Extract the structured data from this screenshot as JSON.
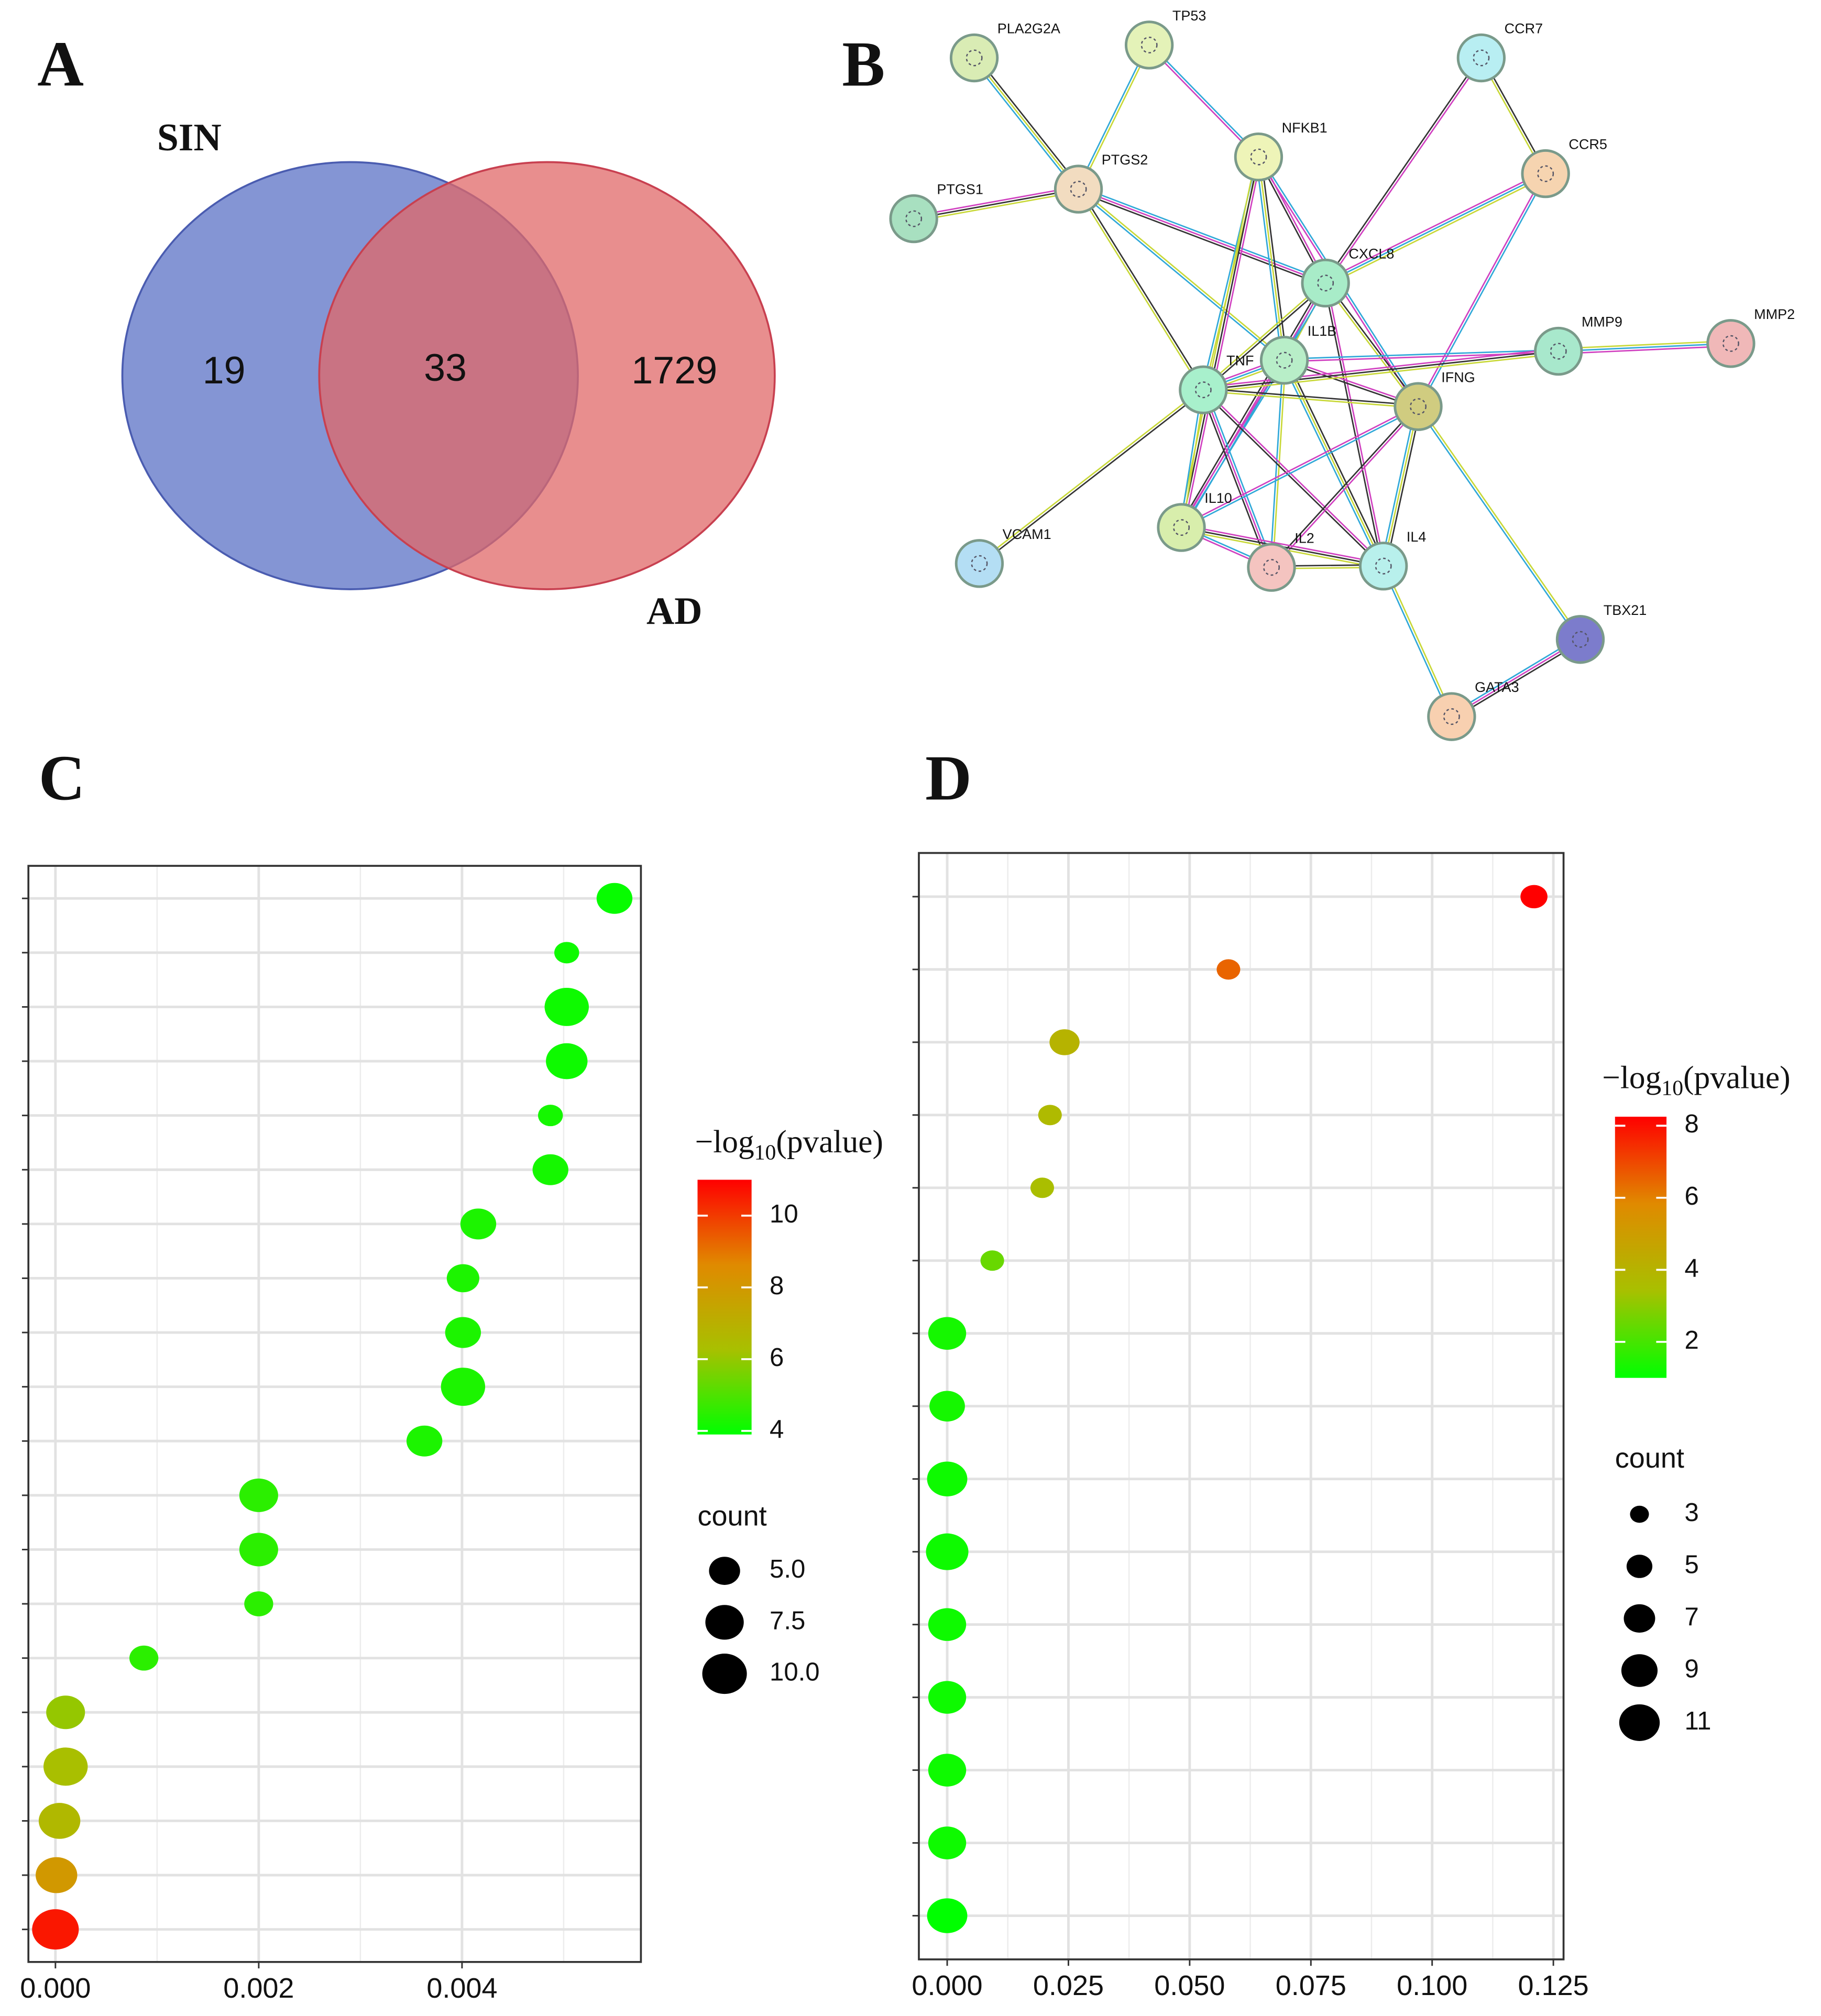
{
  "chart_data": [
    {
      "type": "venn",
      "panel": "A",
      "sets": [
        {
          "name": "SIN",
          "color": "#6f82cc"
        },
        {
          "name": "AD",
          "color": "#e06868"
        }
      ],
      "values": [
        19,
        33,
        1729
      ]
    },
    {
      "type": "network",
      "panel": "B",
      "nodes": [
        {
          "label": "PLA2G2A",
          "color": "#d9ecb4"
        },
        {
          "label": "TP53",
          "color": "#e4f2b8"
        },
        {
          "label": "CCR7",
          "color": "#b8eef2"
        },
        {
          "label": "NFKB1",
          "color": "#eef4b8"
        },
        {
          "label": "CCR5",
          "color": "#f6d4b0"
        },
        {
          "label": "PTGS2",
          "color": "#f2dcc0"
        },
        {
          "label": "PTGS1",
          "color": "#a8e0c0"
        },
        {
          "label": "CXCL8",
          "color": "#a8ecc8"
        },
        {
          "label": "MMP9",
          "color": "#a8e8cc"
        },
        {
          "label": "MMP2",
          "color": "#f0b8b8"
        },
        {
          "label": "IL1B",
          "color": "#b8eec8"
        },
        {
          "label": "TNF",
          "color": "#a8f0cc"
        },
        {
          "label": "IFNG",
          "color": "#d0cc80"
        },
        {
          "label": "IL10",
          "color": "#d8eeac"
        },
        {
          "label": "VCAM1",
          "color": "#b4def4"
        },
        {
          "label": "IL2",
          "color": "#f4c4c0"
        },
        {
          "label": "IL4",
          "color": "#b8f0ec"
        },
        {
          "label": "TBX21",
          "color": "#7c7ccc"
        },
        {
          "label": "GATA3",
          "color": "#f8d0b0"
        }
      ],
      "edges": [
        [
          0,
          5
        ],
        [
          1,
          5
        ],
        [
          1,
          3
        ],
        [
          6,
          5
        ],
        [
          5,
          11
        ],
        [
          5,
          10
        ],
        [
          5,
          7
        ],
        [
          2,
          7
        ],
        [
          2,
          4
        ],
        [
          4,
          7
        ],
        [
          4,
          12
        ],
        [
          3,
          7
        ],
        [
          3,
          10
        ],
        [
          3,
          11
        ],
        [
          3,
          12
        ],
        [
          3,
          13
        ],
        [
          7,
          11
        ],
        [
          7,
          10
        ],
        [
          7,
          13
        ],
        [
          7,
          16
        ],
        [
          7,
          12
        ],
        [
          10,
          11
        ],
        [
          10,
          8
        ],
        [
          10,
          12
        ],
        [
          10,
          16
        ],
        [
          10,
          15
        ],
        [
          10,
          13
        ],
        [
          11,
          8
        ],
        [
          11,
          12
        ],
        [
          11,
          13
        ],
        [
          11,
          15
        ],
        [
          11,
          16
        ],
        [
          11,
          14
        ],
        [
          8,
          9
        ],
        [
          12,
          13
        ],
        [
          12,
          15
        ],
        [
          12,
          16
        ],
        [
          12,
          17
        ],
        [
          13,
          15
        ],
        [
          13,
          16
        ],
        [
          15,
          16
        ],
        [
          16,
          18
        ],
        [
          18,
          17
        ]
      ]
    },
    {
      "type": "scatter",
      "panel": "C",
      "categories": [
        null,
        null,
        null,
        null,
        null,
        null,
        null,
        null,
        null,
        null,
        null,
        null,
        null,
        null,
        null,
        null,
        null,
        null,
        null,
        null
      ],
      "x": [
        0,
        1e-05,
        4e-05,
        0.0001,
        0.0001,
        0.00087,
        0.002,
        0.002,
        0.002,
        0.00363,
        0.00401,
        0.00401,
        0.00401,
        0.00416,
        0.00487,
        0.00487,
        0.00503,
        0.00503,
        0.00503,
        0.0055
      ],
      "sizes": [
        10,
        8,
        8,
        9,
        7,
        4,
        4,
        7,
        7,
        6,
        9,
        6,
        5,
        6,
        6,
        3,
        8,
        9,
        3,
        6
      ],
      "color_values": [
        10.6,
        8,
        6.6,
        6.3,
        6,
        4.5,
        4.5,
        4.5,
        4.5,
        4.3,
        4.3,
        4.3,
        4.3,
        4.3,
        4.2,
        4.2,
        4.1,
        4.1,
        4.1,
        4
      ],
      "xlim": [
        -0.000266,
        0.00576
      ],
      "xticks": [
        {
          "value": 0,
          "label": "0.000"
        },
        {
          "value": 0.002,
          "label": "0.002"
        },
        {
          "value": 0.004,
          "label": "0.004"
        }
      ],
      "grid": true,
      "colorscale": [
        "#00ff00",
        "#a8c000",
        "#e08a00",
        "#ff0000"
      ],
      "colorbar_title": [
        "−log",
        "10",
        "(pvalue)"
      ],
      "colorlim": [
        3.9,
        11
      ],
      "colorticks": [
        4,
        6,
        8,
        10
      ],
      "size_title": "count",
      "size_ticks": [
        {
          "value": 5,
          "label": "5.0"
        },
        {
          "value": 7.5,
          "label": "7.5"
        },
        {
          "value": 10,
          "label": "10.0"
        }
      ]
    },
    {
      "type": "scatter",
      "panel": "D",
      "categories": [
        null,
        null,
        null,
        null,
        null,
        null,
        null,
        null,
        null,
        null,
        null,
        null,
        null,
        null,
        null
      ],
      "x": [
        0,
        0,
        0,
        0,
        0,
        0,
        0,
        0,
        0,
        0.0093,
        0.0196,
        0.0212,
        0.0242,
        0.058,
        0.121
      ],
      "sizes": [
        10,
        9,
        9,
        9,
        9,
        11,
        10,
        8,
        9,
        4,
        4,
        4,
        6,
        4,
        5
      ],
      "color_values": [
        1,
        1.2,
        1.2,
        1.2,
        1.2,
        1.2,
        1.2,
        1.3,
        1.3,
        2.5,
        3.5,
        3.7,
        4,
        6.5,
        8.25
      ],
      "xlim": [
        -0.00584,
        0.1271
      ],
      "xticks": [
        {
          "value": 0,
          "label": "0.000"
        },
        {
          "value": 0.025,
          "label": "0.025"
        },
        {
          "value": 0.05,
          "label": "0.050"
        },
        {
          "value": 0.075,
          "label": "0.075"
        },
        {
          "value": 0.1,
          "label": "0.100"
        },
        {
          "value": 0.125,
          "label": "0.125"
        }
      ],
      "grid": true,
      "colorscale": [
        "#00ff00",
        "#a8c000",
        "#e08a00",
        "#ff0000"
      ],
      "colorbar_title": [
        "−log",
        "10",
        "(pvalue)"
      ],
      "colorlim": [
        1,
        8.25
      ],
      "colorticks": [
        2,
        4,
        6,
        8
      ],
      "size_title": "count",
      "size_ticks": [
        3,
        5,
        7,
        9,
        11
      ]
    }
  ]
}
